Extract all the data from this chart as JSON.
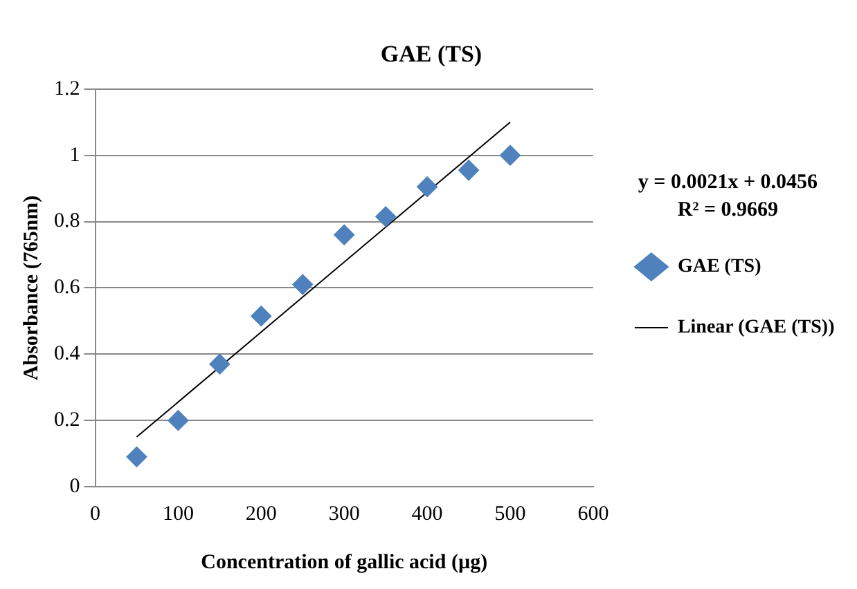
{
  "chart_data": {
    "type": "scatter",
    "title": "GAE (TS)",
    "xlabel": "Concentration of gallic acid (µg)",
    "ylabel": "Absorbance (765nm)",
    "series": [
      {
        "name": "GAE (TS)",
        "marker": "diamond",
        "color": "#4f81bd",
        "x": [
          50,
          100,
          150,
          200,
          250,
          300,
          350,
          400,
          450,
          500
        ],
        "values": [
          0.09,
          0.2,
          0.37,
          0.515,
          0.61,
          0.76,
          0.815,
          0.905,
          0.955,
          1.0
        ]
      },
      {
        "name": "Linear (GAE (TS))",
        "type": "line",
        "color": "#000000",
        "x": [
          50,
          500
        ],
        "values": [
          0.15,
          1.1
        ]
      }
    ],
    "xlim": [
      0,
      600
    ],
    "xticks": [
      0,
      100,
      200,
      300,
      400,
      500,
      600
    ],
    "ylim": [
      0,
      1.2
    ],
    "yticks": [
      0,
      0.2,
      0.4,
      0.6,
      0.8,
      1,
      1.2
    ],
    "grid": "y",
    "legend": "right",
    "annotations": [
      "y = 0.0021x + 0.0456",
      "R² = 0.9669"
    ]
  }
}
